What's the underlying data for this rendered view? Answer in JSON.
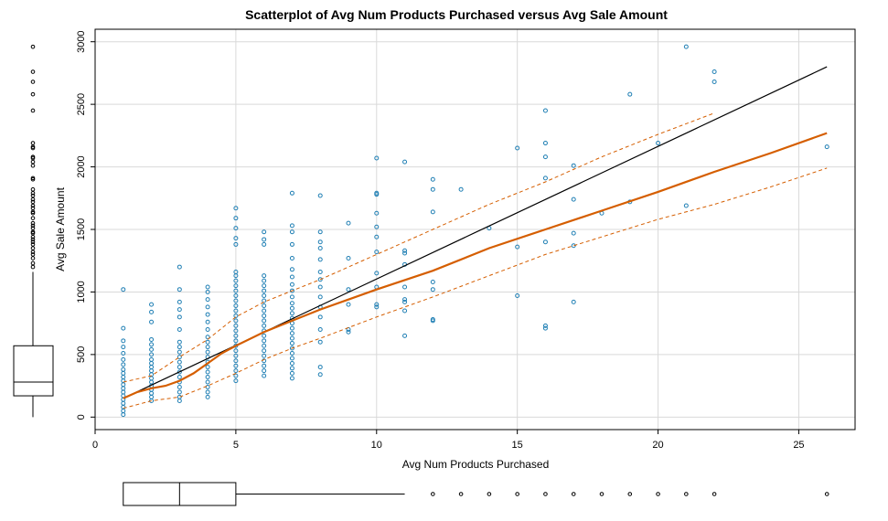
{
  "chart_data": {
    "type": "scatter",
    "title": "Scatterplot of Avg Num Products Purchased versus Avg Sale Amount",
    "xlabel": "Avg Num Products Purchased",
    "ylabel": "Avg Sale Amount",
    "xlim": [
      0,
      27
    ],
    "ylim": [
      -100,
      3100
    ],
    "xticks": [
      0,
      5,
      10,
      15,
      20,
      25
    ],
    "yticks": [
      0,
      500,
      1000,
      1500,
      2000,
      2500,
      3000
    ],
    "grid": true,
    "colors": {
      "points": "#1f7fb4",
      "smooth": "#d55e00",
      "regression": "#000000",
      "grid": "#d9d9d9"
    },
    "points": [
      [
        1,
        20
      ],
      [
        1,
        50
      ],
      [
        1,
        80
      ],
      [
        1,
        110
      ],
      [
        1,
        140
      ],
      [
        1,
        170
      ],
      [
        1,
        200
      ],
      [
        1,
        230
      ],
      [
        1,
        260
      ],
      [
        1,
        290
      ],
      [
        1,
        320
      ],
      [
        1,
        350
      ],
      [
        1,
        380
      ],
      [
        1,
        420
      ],
      [
        1,
        460
      ],
      [
        1,
        510
      ],
      [
        1,
        560
      ],
      [
        1,
        610
      ],
      [
        1,
        710
      ],
      [
        1,
        1020
      ],
      [
        2,
        130
      ],
      [
        2,
        160
      ],
      [
        2,
        190
      ],
      [
        2,
        220
      ],
      [
        2,
        250
      ],
      [
        2,
        280
      ],
      [
        2,
        310
      ],
      [
        2,
        340
      ],
      [
        2,
        370
      ],
      [
        2,
        400
      ],
      [
        2,
        430
      ],
      [
        2,
        460
      ],
      [
        2,
        500
      ],
      [
        2,
        540
      ],
      [
        2,
        580
      ],
      [
        2,
        620
      ],
      [
        2,
        760
      ],
      [
        2,
        840
      ],
      [
        2,
        900
      ],
      [
        3,
        130
      ],
      [
        3,
        160
      ],
      [
        3,
        200
      ],
      [
        3,
        240
      ],
      [
        3,
        280
      ],
      [
        3,
        320
      ],
      [
        3,
        360
      ],
      [
        3,
        400
      ],
      [
        3,
        440
      ],
      [
        3,
        480
      ],
      [
        3,
        520
      ],
      [
        3,
        560
      ],
      [
        3,
        600
      ],
      [
        3,
        700
      ],
      [
        3,
        800
      ],
      [
        3,
        860
      ],
      [
        3,
        920
      ],
      [
        3,
        1020
      ],
      [
        3,
        1200
      ],
      [
        4,
        160
      ],
      [
        4,
        200
      ],
      [
        4,
        240
      ],
      [
        4,
        280
      ],
      [
        4,
        320
      ],
      [
        4,
        360
      ],
      [
        4,
        400
      ],
      [
        4,
        440
      ],
      [
        4,
        480
      ],
      [
        4,
        520
      ],
      [
        4,
        560
      ],
      [
        4,
        600
      ],
      [
        4,
        640
      ],
      [
        4,
        700
      ],
      [
        4,
        760
      ],
      [
        4,
        820
      ],
      [
        4,
        880
      ],
      [
        4,
        940
      ],
      [
        4,
        1000
      ],
      [
        4,
        1040
      ],
      [
        5,
        290
      ],
      [
        5,
        330
      ],
      [
        5,
        370
      ],
      [
        5,
        410
      ],
      [
        5,
        450
      ],
      [
        5,
        490
      ],
      [
        5,
        530
      ],
      [
        5,
        570
      ],
      [
        5,
        610
      ],
      [
        5,
        650
      ],
      [
        5,
        690
      ],
      [
        5,
        730
      ],
      [
        5,
        770
      ],
      [
        5,
        810
      ],
      [
        5,
        850
      ],
      [
        5,
        890
      ],
      [
        5,
        930
      ],
      [
        5,
        970
      ],
      [
        5,
        1010
      ],
      [
        5,
        1050
      ],
      [
        5,
        1090
      ],
      [
        5,
        1130
      ],
      [
        5,
        1160
      ],
      [
        5,
        1380
      ],
      [
        5,
        1430
      ],
      [
        5,
        1510
      ],
      [
        5,
        1590
      ],
      [
        5,
        1670
      ],
      [
        6,
        330
      ],
      [
        6,
        370
      ],
      [
        6,
        410
      ],
      [
        6,
        450
      ],
      [
        6,
        490
      ],
      [
        6,
        530
      ],
      [
        6,
        570
      ],
      [
        6,
        610
      ],
      [
        6,
        650
      ],
      [
        6,
        690
      ],
      [
        6,
        730
      ],
      [
        6,
        770
      ],
      [
        6,
        810
      ],
      [
        6,
        850
      ],
      [
        6,
        890
      ],
      [
        6,
        930
      ],
      [
        6,
        970
      ],
      [
        6,
        1010
      ],
      [
        6,
        1050
      ],
      [
        6,
        1090
      ],
      [
        6,
        1130
      ],
      [
        6,
        1380
      ],
      [
        6,
        1420
      ],
      [
        6,
        1480
      ],
      [
        7,
        310
      ],
      [
        7,
        350
      ],
      [
        7,
        390
      ],
      [
        7,
        430
      ],
      [
        7,
        470
      ],
      [
        7,
        510
      ],
      [
        7,
        550
      ],
      [
        7,
        590
      ],
      [
        7,
        630
      ],
      [
        7,
        670
      ],
      [
        7,
        710
      ],
      [
        7,
        750
      ],
      [
        7,
        790
      ],
      [
        7,
        830
      ],
      [
        7,
        870
      ],
      [
        7,
        910
      ],
      [
        7,
        960
      ],
      [
        7,
        1010
      ],
      [
        7,
        1060
      ],
      [
        7,
        1120
      ],
      [
        7,
        1180
      ],
      [
        7,
        1270
      ],
      [
        7,
        1380
      ],
      [
        7,
        1480
      ],
      [
        7,
        1530
      ],
      [
        7,
        1790
      ],
      [
        8,
        340
      ],
      [
        8,
        400
      ],
      [
        8,
        600
      ],
      [
        8,
        700
      ],
      [
        8,
        800
      ],
      [
        8,
        880
      ],
      [
        8,
        960
      ],
      [
        8,
        1040
      ],
      [
        8,
        1100
      ],
      [
        8,
        1160
      ],
      [
        8,
        1260
      ],
      [
        8,
        1350
      ],
      [
        8,
        1400
      ],
      [
        8,
        1480
      ],
      [
        8,
        1770
      ],
      [
        9,
        680
      ],
      [
        9,
        700
      ],
      [
        9,
        900
      ],
      [
        9,
        1020
      ],
      [
        9,
        1270
      ],
      [
        9,
        1550
      ],
      [
        10,
        880
      ],
      [
        10,
        900
      ],
      [
        10,
        1040
      ],
      [
        10,
        1150
      ],
      [
        10,
        1320
      ],
      [
        10,
        1440
      ],
      [
        10,
        1520
      ],
      [
        10,
        1630
      ],
      [
        10,
        1780
      ],
      [
        10,
        1790
      ],
      [
        10,
        2070
      ],
      [
        11,
        650
      ],
      [
        11,
        850
      ],
      [
        11,
        920
      ],
      [
        11,
        940
      ],
      [
        11,
        1040
      ],
      [
        11,
        1220
      ],
      [
        11,
        1310
      ],
      [
        11,
        1330
      ],
      [
        11,
        2040
      ],
      [
        12,
        770
      ],
      [
        12,
        780
      ],
      [
        12,
        1020
      ],
      [
        12,
        1080
      ],
      [
        12,
        1640
      ],
      [
        12,
        1820
      ],
      [
        12,
        1900
      ],
      [
        13,
        1820
      ],
      [
        14,
        1510
      ],
      [
        15,
        970
      ],
      [
        15,
        1360
      ],
      [
        15,
        2150
      ],
      [
        16,
        710
      ],
      [
        16,
        730
      ],
      [
        16,
        1400
      ],
      [
        16,
        1910
      ],
      [
        16,
        2080
      ],
      [
        16,
        2190
      ],
      [
        16,
        2450
      ],
      [
        17,
        920
      ],
      [
        17,
        1370
      ],
      [
        17,
        1470
      ],
      [
        17,
        1740
      ],
      [
        17,
        2010
      ],
      [
        18,
        1630
      ],
      [
        19,
        1720
      ],
      [
        19,
        2580
      ],
      [
        20,
        2190
      ],
      [
        21,
        1690
      ],
      [
        21,
        2960
      ],
      [
        22,
        2680
      ],
      [
        22,
        2760
      ],
      [
        26,
        2160
      ]
    ],
    "regression_line": {
      "x": [
        1,
        26
      ],
      "y": [
        150,
        2800
      ]
    },
    "smooth_line": {
      "x": [
        1,
        1.5,
        2,
        2.5,
        3,
        3.5,
        4,
        4.5,
        5,
        6,
        7,
        8,
        10,
        12,
        14,
        16,
        18,
        20,
        22,
        24,
        26
      ],
      "y": [
        150,
        200,
        230,
        250,
        290,
        350,
        430,
        510,
        570,
        680,
        770,
        860,
        1020,
        1170,
        1350,
        1500,
        1650,
        1800,
        1960,
        2110,
        2270
      ]
    },
    "smooth_upper": {
      "x": [
        1,
        2,
        3,
        4,
        5,
        6,
        7,
        8,
        10,
        12,
        14,
        16,
        18,
        20,
        22
      ],
      "y": [
        280,
        330,
        480,
        620,
        800,
        920,
        1010,
        1100,
        1300,
        1500,
        1700,
        1880,
        2080,
        2260,
        2430
      ]
    },
    "smooth_lower": {
      "x": [
        1,
        2,
        3,
        4,
        5,
        6,
        7,
        8,
        10,
        12,
        14,
        16,
        18,
        20,
        22,
        24,
        26
      ],
      "y": [
        70,
        130,
        160,
        250,
        350,
        460,
        550,
        630,
        800,
        960,
        1130,
        1300,
        1440,
        1580,
        1700,
        1840,
        1990
      ]
    },
    "y_boxplot": {
      "min": 0,
      "q1": 170,
      "median": 280,
      "q3": 570,
      "whisker_high": 1160,
      "outliers": [
        1200,
        1230,
        1270,
        1300,
        1320,
        1350,
        1380,
        1400,
        1420,
        1440,
        1470,
        1480,
        1510,
        1530,
        1550,
        1590,
        1630,
        1640,
        1670,
        1690,
        1720,
        1740,
        1770,
        1790,
        1820,
        1900,
        1910,
        2010,
        2040,
        2070,
        2080,
        2150,
        2160,
        2190,
        2450,
        2580,
        2680,
        2760,
        2960
      ]
    },
    "x_boxplot": {
      "min": 1,
      "q1": 1,
      "median": 3,
      "q3": 5,
      "whisker_high": 11,
      "outliers": [
        12,
        13,
        14,
        15,
        16,
        17,
        18,
        19,
        20,
        21,
        22,
        26
      ]
    }
  }
}
